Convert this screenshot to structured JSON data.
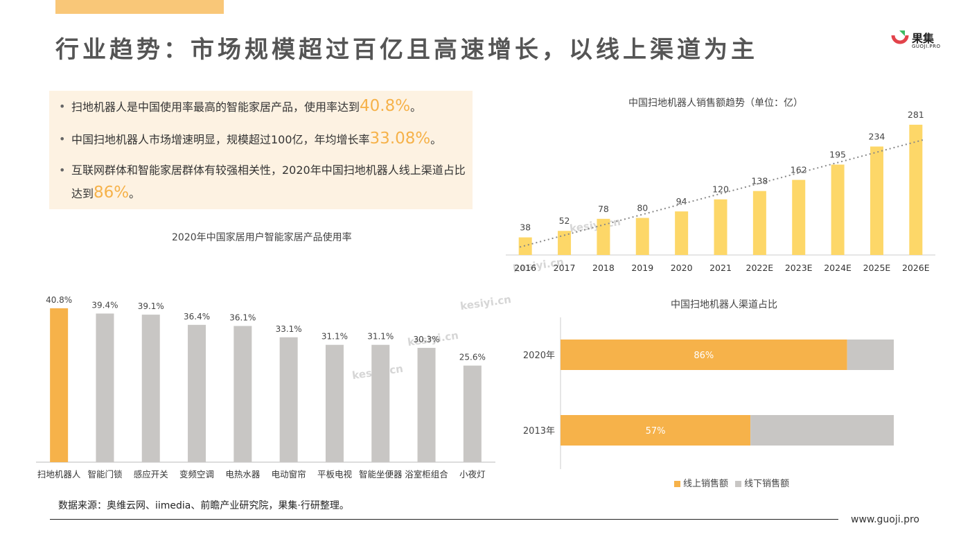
{
  "header": {
    "title": "行业趋势：市场规模超过百亿且高速增长，以线上渠道为主",
    "logo_name": "果集",
    "logo_sub": "GUOJI.PRO"
  },
  "bullets": [
    {
      "text": "扫地机器人是中国使用率最高的智能家居产品，使用率达到",
      "highlight": "40.8%",
      "suffix": "。"
    },
    {
      "text": "中国扫地机器人市场增速明显，规模超过100亿，年均增长率",
      "highlight": "33.08%",
      "suffix": "。"
    },
    {
      "text": "互联网群体和智能家居群体有较强相关性，2020年中国扫地机器人线上渠道占比达到",
      "highlight": "86%",
      "suffix": "。"
    }
  ],
  "bullet_dot": "•",
  "watermark": "kesiyi.cn",
  "colors": {
    "accent": "#f6b24a",
    "gray": "#c8c6c4",
    "yellow": "#fdd768",
    "box": "#fdf2e2"
  },
  "chart_data": [
    {
      "type": "bar",
      "title": "2020年中国家居用户智能家居产品使用率",
      "categories": [
        "扫地机器人",
        "智能门锁",
        "感应开关",
        "变频空调",
        "电热水器",
        "电动窗帘",
        "平板电视",
        "智能坐便器",
        "浴室柜组合",
        "小夜灯"
      ],
      "values": [
        40.8,
        39.4,
        39.1,
        36.4,
        36.1,
        33.1,
        31.1,
        31.1,
        30.3,
        25.6
      ],
      "labels": [
        "40.8%",
        "39.4%",
        "39.1%",
        "36.4%",
        "36.1%",
        "33.1%",
        "31.1%",
        "31.1%",
        "30.3%",
        "25.6%"
      ],
      "ylim": [
        0,
        45
      ],
      "highlight_index": 0
    },
    {
      "type": "bar",
      "title": "中国扫地机器人销售额趋势（单位：亿）",
      "categories": [
        "2016",
        "2017",
        "2018",
        "2019",
        "2020",
        "2021",
        "2022E",
        "2023E",
        "2024E",
        "2025E",
        "2026E"
      ],
      "values": [
        38,
        52,
        78,
        80,
        94,
        120,
        138,
        162,
        195,
        234,
        281
      ],
      "ylim": [
        0,
        290
      ],
      "trendline": "dotted"
    },
    {
      "type": "bar",
      "orientation": "horizontal-stacked",
      "title": "中国扫地机器人渠道占比",
      "categories": [
        "2020年",
        "2013年"
      ],
      "series": [
        {
          "name": "线上销售额",
          "values": [
            86,
            57
          ],
          "labels": [
            "86%",
            "57%"
          ]
        },
        {
          "name": "线下销售额",
          "values": [
            14,
            43
          ]
        }
      ],
      "legend": "bottom"
    }
  ],
  "footer": {
    "source": "数据来源：奥维云网、iimedia、前瞻产业研究院，果集·行研整理。",
    "website": "www.guoji.pro"
  }
}
